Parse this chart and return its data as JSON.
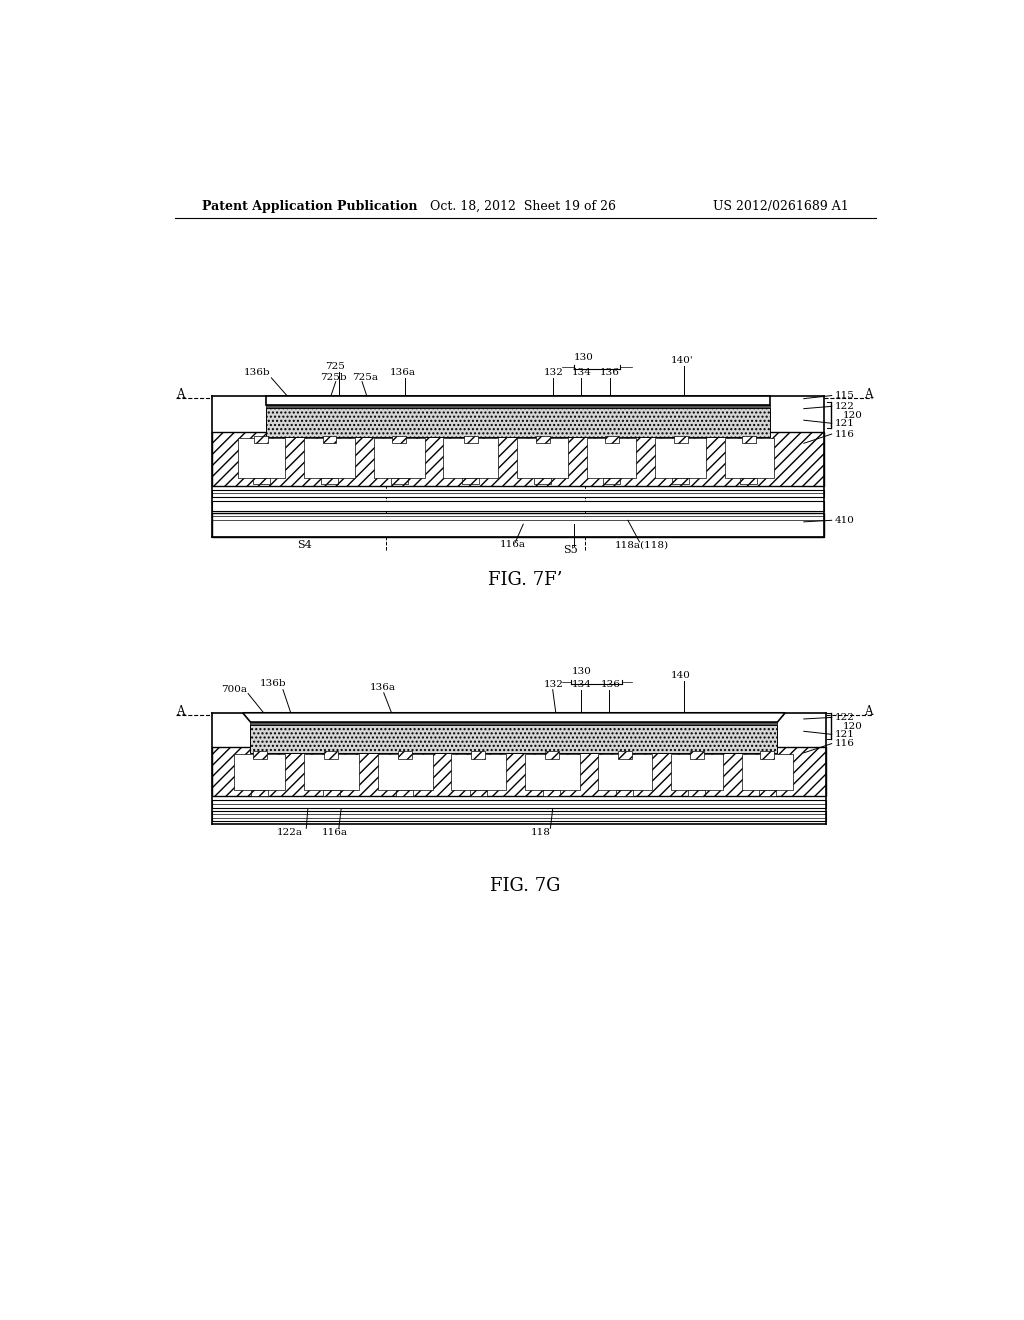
{
  "bg_color": "#ffffff",
  "header_left": "Patent Application Publication",
  "header_mid": "Oct. 18, 2012  Sheet 19 of 26",
  "header_right": "US 2012/0261689 A1",
  "fig1_label": "FIG. 7F’",
  "fig2_label": "FIG. 7G"
}
